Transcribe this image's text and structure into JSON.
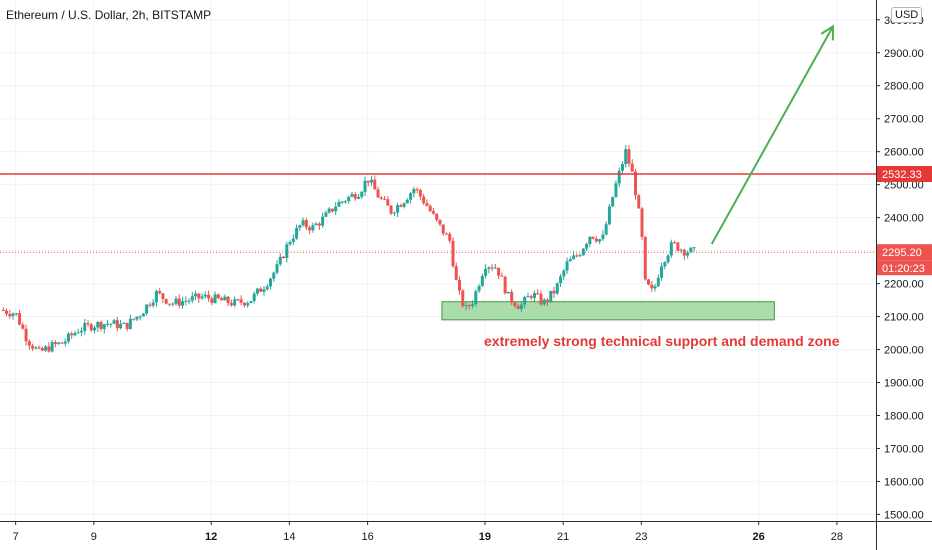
{
  "title": "Ethereum / U.S. Dollar, 2h, BITSTAMP",
  "currency_button": "USD",
  "annotation": "extremely strong technical support and demand zone",
  "colors": {
    "up": "#26a69a",
    "down": "#ef5350",
    "resistance": "#e53935",
    "zone_fill": "#8fd18f",
    "arrow": "#4caf50"
  },
  "chart_data": {
    "type": "candlestick",
    "title": "Ethereum / U.S. Dollar, 2h, BITSTAMP",
    "ylim": [
      1480,
      3060
    ],
    "y_ticks": [
      1500,
      1600,
      1700,
      1800,
      1900,
      2000,
      2100,
      2200,
      2300,
      2400,
      2500,
      2600,
      2700,
      2800,
      2900,
      3000
    ],
    "y_tick_labels": [
      "1500.00",
      "1600.00",
      "1700.00",
      "1800.00",
      "1900.00",
      "2000.00",
      "2100.00",
      "2200.00",
      "2300.00",
      "2400.00",
      "2500.00",
      "2600.00",
      "2700.00",
      "2800.00",
      "2900.00",
      "3000.00"
    ],
    "x_ticks": [
      {
        "label": "7",
        "day": 7,
        "bold": false
      },
      {
        "label": "9",
        "day": 9,
        "bold": false
      },
      {
        "label": "12",
        "day": 12,
        "bold": true
      },
      {
        "label": "14",
        "day": 14,
        "bold": false
      },
      {
        "label": "16",
        "day": 16,
        "bold": false
      },
      {
        "label": "19",
        "day": 19,
        "bold": true
      },
      {
        "label": "21",
        "day": 21,
        "bold": false
      },
      {
        "label": "23",
        "day": 23,
        "bold": false
      },
      {
        "label": "26",
        "day": 26,
        "bold": true
      },
      {
        "label": "28",
        "day": 28,
        "bold": false
      }
    ],
    "x_range_days": [
      6.6,
      29.0
    ],
    "price_path": [
      [
        6.6,
        2120
      ],
      [
        7.0,
        2110
      ],
      [
        7.3,
        2030
      ],
      [
        7.6,
        1990
      ],
      [
        7.9,
        2010
      ],
      [
        8.2,
        2020
      ],
      [
        8.6,
        2060
      ],
      [
        9.0,
        2075
      ],
      [
        9.4,
        2080
      ],
      [
        9.8,
        2070
      ],
      [
        10.2,
        2110
      ],
      [
        10.6,
        2170
      ],
      [
        11.0,
        2140
      ],
      [
        11.4,
        2150
      ],
      [
        11.8,
        2160
      ],
      [
        12.2,
        2150
      ],
      [
        12.6,
        2140
      ],
      [
        13.0,
        2150
      ],
      [
        13.4,
        2200
      ],
      [
        13.7,
        2250
      ],
      [
        14.0,
        2330
      ],
      [
        14.3,
        2380
      ],
      [
        14.6,
        2370
      ],
      [
        14.9,
        2400
      ],
      [
        15.2,
        2440
      ],
      [
        15.5,
        2460
      ],
      [
        15.8,
        2480
      ],
      [
        16.0,
        2520
      ],
      [
        16.3,
        2460
      ],
      [
        16.6,
        2420
      ],
      [
        16.9,
        2450
      ],
      [
        17.2,
        2490
      ],
      [
        17.5,
        2440
      ],
      [
        17.8,
        2380
      ],
      [
        18.1,
        2330
      ],
      [
        18.3,
        2180
      ],
      [
        18.5,
        2120
      ],
      [
        18.7,
        2150
      ],
      [
        19.0,
        2260
      ],
      [
        19.3,
        2250
      ],
      [
        19.6,
        2160
      ],
      [
        19.9,
        2130
      ],
      [
        20.2,
        2170
      ],
      [
        20.5,
        2140
      ],
      [
        20.8,
        2180
      ],
      [
        21.1,
        2260
      ],
      [
        21.4,
        2290
      ],
      [
        21.7,
        2350
      ],
      [
        22.0,
        2330
      ],
      [
        22.3,
        2480
      ],
      [
        22.6,
        2600
      ],
      [
        22.8,
        2520
      ],
      [
        23.0,
        2360
      ],
      [
        23.1,
        2200
      ],
      [
        23.3,
        2170
      ],
      [
        23.5,
        2260
      ],
      [
        23.8,
        2320
      ],
      [
        24.1,
        2300
      ],
      [
        24.4,
        2295.2
      ]
    ],
    "resistance_level": 2532.33,
    "current_price": 2295.2,
    "badges": [
      {
        "name": "resistance-price-badge",
        "text": "2532.33",
        "value": 2532.33,
        "color": "#e53935"
      },
      {
        "name": "current-price-badge",
        "text": "2295.20",
        "value": 2295.2,
        "color": "#ef5350"
      }
    ],
    "countdown": "01:20:23",
    "support_zone": {
      "day_start": 17.9,
      "day_end": 26.4,
      "low": 2090,
      "high": 2145
    },
    "projection_arrow": {
      "from": [
        24.8,
        2320
      ],
      "to": [
        27.9,
        2980
      ]
    }
  }
}
